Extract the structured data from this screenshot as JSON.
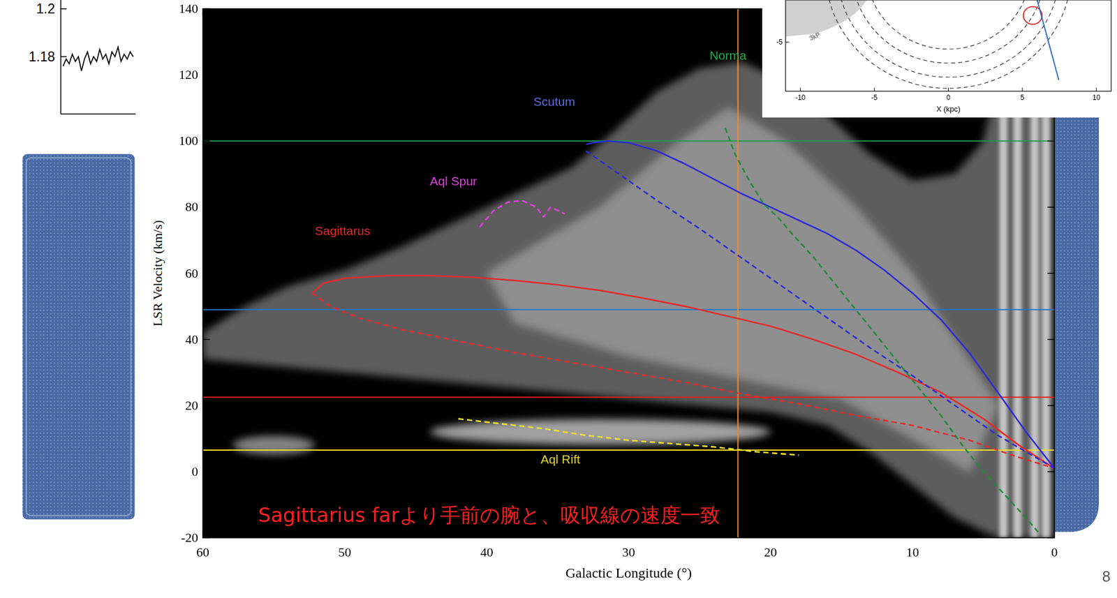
{
  "chart_data": {
    "type": "line",
    "xlabel": "Galactic Longitude (°)",
    "ylabel": "LSR Velocity (km/s)",
    "xlim": [
      60,
      0
    ],
    "ylim": [
      -20,
      140
    ],
    "xticks": [
      60,
      50,
      40,
      30,
      20,
      10,
      0
    ],
    "yticks": [
      -20,
      0,
      20,
      40,
      60,
      80,
      100,
      120,
      140
    ],
    "grid": false,
    "series": [
      {
        "color": "#e42a2a",
        "line_style": "solid",
        "x": [
          52.3,
          51.5,
          50,
          47,
          44,
          41,
          38,
          35,
          32,
          29,
          26,
          23,
          20,
          17,
          14,
          11,
          8,
          5,
          2.5,
          0
        ],
        "values": [
          54,
          57,
          58.5,
          59.3,
          59.3,
          58.8,
          57.8,
          56.5,
          54.8,
          52.5,
          50,
          47,
          44,
          40,
          35.5,
          30,
          24,
          16,
          8,
          1
        ]
      },
      {
        "color": "#e42a2a",
        "line_style": "dashed",
        "x": [
          52.3,
          51,
          49,
          46,
          42,
          38,
          34,
          30,
          26,
          22,
          18,
          14,
          10,
          6,
          3,
          0
        ],
        "values": [
          54,
          50,
          46.5,
          43,
          39.5,
          36,
          33,
          30,
          27,
          23.5,
          20.5,
          17,
          14,
          9.5,
          5,
          1
        ]
      },
      {
        "color": "#2a2ad6",
        "line_style": "solid",
        "x": [
          33,
          32.5,
          31.5,
          30,
          28,
          26,
          24,
          22,
          20,
          18,
          16,
          14,
          12,
          10,
          8,
          6,
          4,
          2,
          0
        ],
        "values": [
          99,
          99.5,
          100,
          99.5,
          97,
          93,
          88.5,
          84,
          80,
          76,
          72,
          67,
          61,
          54,
          46,
          36,
          24,
          12,
          1
        ]
      },
      {
        "color": "#2a2ad6",
        "line_style": "dashed",
        "x": [
          33,
          31,
          28,
          25,
          22,
          19,
          16,
          13,
          10,
          7,
          4,
          2,
          0
        ],
        "values": [
          97,
          91,
          82,
          73.5,
          64.5,
          55.5,
          46.5,
          37.5,
          29,
          20,
          11,
          6,
          1
        ]
      },
      {
        "color": "#1f8a3a",
        "line_style": "dashed",
        "x": [
          23.2,
          22.5,
          21.5,
          20.5,
          19.5,
          18.5,
          17,
          15.5,
          14,
          12.5,
          11,
          9.5,
          8,
          6.5,
          5,
          3.5,
          2,
          1
        ],
        "values": [
          104,
          96,
          88,
          81,
          77,
          72,
          65,
          57,
          49,
          41,
          33,
          25,
          17,
          8,
          0,
          -7,
          -14,
          -19
        ]
      },
      {
        "color": "#e040e0",
        "line_style": "dashed",
        "x": [
          40.5,
          39.5,
          38.5,
          37.5,
          36.5,
          36,
          35.5,
          34.5
        ],
        "values": [
          74,
          79,
          81.5,
          82,
          80,
          77,
          80,
          78
        ]
      },
      {
        "color": "#f0e030",
        "line_style": "dashed",
        "x": [
          42,
          39,
          36,
          33,
          30,
          27,
          24,
          21,
          18
        ],
        "values": [
          16,
          14.5,
          13,
          11,
          9.5,
          8.5,
          7.5,
          6,
          5
        ]
      }
    ],
    "hlines": [
      {
        "value": 100,
        "color": "#1aa04a"
      },
      {
        "value": 49,
        "color": "#1f78c8"
      },
      {
        "value": 22.5,
        "color": "#e81e1e"
      },
      {
        "value": 6.5,
        "color": "#f0e020"
      }
    ],
    "vlines": [
      {
        "value": 22.3,
        "color": "#f08c30"
      }
    ],
    "annotations": [
      {
        "text": "Norma",
        "x": 24.3,
        "y": 124.7,
        "color": "#1db04a"
      },
      {
        "text": "Scutum",
        "x": 36.7,
        "y": 110.7,
        "color": "#5a6ae0"
      },
      {
        "text": "Aql Spur",
        "x": 44.0,
        "y": 86.6,
        "color": "#e040e0"
      },
      {
        "text": "Sagittarus",
        "x": 52.1,
        "y": 71.5,
        "color": "#e42a2a"
      },
      {
        "text": "Aql Rift",
        "x": 36.2,
        "y": 2.4,
        "color": "#e6d820"
      },
      {
        "text": "Sagittarius farより手前の腕と、吸収線の速度一致",
        "x": 56.1,
        "y": -15.2,
        "color": "#ff2020"
      }
    ]
  },
  "inset": {
    "xlabel": "X (kpc)",
    "xlim": [
      -11,
      11
    ],
    "ylim": [
      -8.5,
      -2
    ],
    "xticks": [
      -10,
      -5,
      0,
      5,
      10
    ],
    "yticks": [
      -5
    ],
    "arc_radii": [
      5.5,
      6.5,
      7.5,
      8.3
    ],
    "region": {
      "label": "3kP",
      "x": -9.3,
      "y": -4.9
    },
    "circle": {
      "x": 5.7,
      "y": -3.1,
      "r": 0.63
    },
    "sightline": {
      "x": [
        6.0,
        7.46
      ],
      "y": [
        -2,
        -7.7
      ]
    }
  },
  "spectrum": {
    "ylim": [
      1.156,
      1.2037
    ],
    "yticks": [
      1.2,
      1.18
    ],
    "values": [
      1.176,
      1.179,
      1.177,
      1.181,
      1.178,
      1.18,
      1.174,
      1.179,
      1.182,
      1.177,
      1.18,
      1.178,
      1.183,
      1.179,
      1.181,
      1.177,
      1.182,
      1.18,
      1.184,
      1.178,
      1.181,
      1.179,
      1.182,
      1.18
    ]
  },
  "page_number": "8"
}
